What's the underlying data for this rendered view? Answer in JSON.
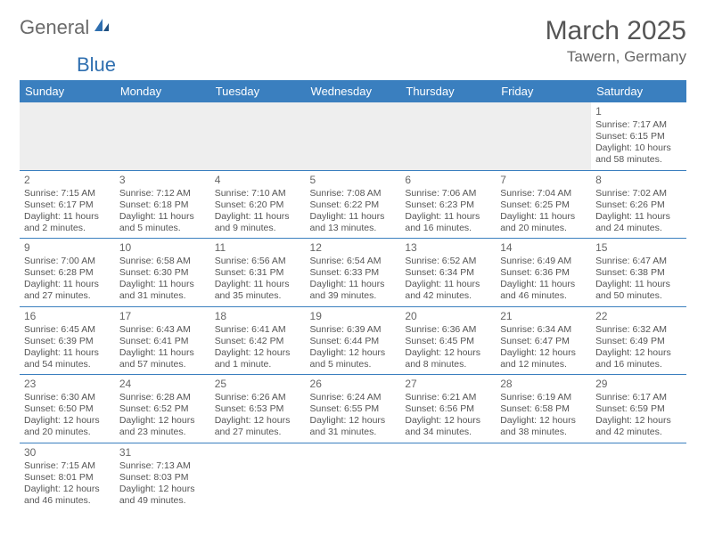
{
  "logo": {
    "part1": "General",
    "part2": "Blue"
  },
  "title": "March 2025",
  "location": "Tawern, Germany",
  "colors": {
    "headerBg": "#3a7fbf",
    "headerText": "#ffffff",
    "border": "#3a7fbf",
    "bodyText": "#555555",
    "logoGray": "#6a6a6a",
    "logoBlue": "#2f6fb0"
  },
  "dayHeaders": [
    "Sunday",
    "Monday",
    "Tuesday",
    "Wednesday",
    "Thursday",
    "Friday",
    "Saturday"
  ],
  "firstDayIndex": 6,
  "daysInMonth": 31,
  "days": {
    "1": {
      "sunrise": "7:17 AM",
      "sunset": "6:15 PM",
      "daylight": "10 hours and 58 minutes."
    },
    "2": {
      "sunrise": "7:15 AM",
      "sunset": "6:17 PM",
      "daylight": "11 hours and 2 minutes."
    },
    "3": {
      "sunrise": "7:12 AM",
      "sunset": "6:18 PM",
      "daylight": "11 hours and 5 minutes."
    },
    "4": {
      "sunrise": "7:10 AM",
      "sunset": "6:20 PM",
      "daylight": "11 hours and 9 minutes."
    },
    "5": {
      "sunrise": "7:08 AM",
      "sunset": "6:22 PM",
      "daylight": "11 hours and 13 minutes."
    },
    "6": {
      "sunrise": "7:06 AM",
      "sunset": "6:23 PM",
      "daylight": "11 hours and 16 minutes."
    },
    "7": {
      "sunrise": "7:04 AM",
      "sunset": "6:25 PM",
      "daylight": "11 hours and 20 minutes."
    },
    "8": {
      "sunrise": "7:02 AM",
      "sunset": "6:26 PM",
      "daylight": "11 hours and 24 minutes."
    },
    "9": {
      "sunrise": "7:00 AM",
      "sunset": "6:28 PM",
      "daylight": "11 hours and 27 minutes."
    },
    "10": {
      "sunrise": "6:58 AM",
      "sunset": "6:30 PM",
      "daylight": "11 hours and 31 minutes."
    },
    "11": {
      "sunrise": "6:56 AM",
      "sunset": "6:31 PM",
      "daylight": "11 hours and 35 minutes."
    },
    "12": {
      "sunrise": "6:54 AM",
      "sunset": "6:33 PM",
      "daylight": "11 hours and 39 minutes."
    },
    "13": {
      "sunrise": "6:52 AM",
      "sunset": "6:34 PM",
      "daylight": "11 hours and 42 minutes."
    },
    "14": {
      "sunrise": "6:49 AM",
      "sunset": "6:36 PM",
      "daylight": "11 hours and 46 minutes."
    },
    "15": {
      "sunrise": "6:47 AM",
      "sunset": "6:38 PM",
      "daylight": "11 hours and 50 minutes."
    },
    "16": {
      "sunrise": "6:45 AM",
      "sunset": "6:39 PM",
      "daylight": "11 hours and 54 minutes."
    },
    "17": {
      "sunrise": "6:43 AM",
      "sunset": "6:41 PM",
      "daylight": "11 hours and 57 minutes."
    },
    "18": {
      "sunrise": "6:41 AM",
      "sunset": "6:42 PM",
      "daylight": "12 hours and 1 minute."
    },
    "19": {
      "sunrise": "6:39 AM",
      "sunset": "6:44 PM",
      "daylight": "12 hours and 5 minutes."
    },
    "20": {
      "sunrise": "6:36 AM",
      "sunset": "6:45 PM",
      "daylight": "12 hours and 8 minutes."
    },
    "21": {
      "sunrise": "6:34 AM",
      "sunset": "6:47 PM",
      "daylight": "12 hours and 12 minutes."
    },
    "22": {
      "sunrise": "6:32 AM",
      "sunset": "6:49 PM",
      "daylight": "12 hours and 16 minutes."
    },
    "23": {
      "sunrise": "6:30 AM",
      "sunset": "6:50 PM",
      "daylight": "12 hours and 20 minutes."
    },
    "24": {
      "sunrise": "6:28 AM",
      "sunset": "6:52 PM",
      "daylight": "12 hours and 23 minutes."
    },
    "25": {
      "sunrise": "6:26 AM",
      "sunset": "6:53 PM",
      "daylight": "12 hours and 27 minutes."
    },
    "26": {
      "sunrise": "6:24 AM",
      "sunset": "6:55 PM",
      "daylight": "12 hours and 31 minutes."
    },
    "27": {
      "sunrise": "6:21 AM",
      "sunset": "6:56 PM",
      "daylight": "12 hours and 34 minutes."
    },
    "28": {
      "sunrise": "6:19 AM",
      "sunset": "6:58 PM",
      "daylight": "12 hours and 38 minutes."
    },
    "29": {
      "sunrise": "6:17 AM",
      "sunset": "6:59 PM",
      "daylight": "12 hours and 42 minutes."
    },
    "30": {
      "sunrise": "7:15 AM",
      "sunset": "8:01 PM",
      "daylight": "12 hours and 46 minutes."
    },
    "31": {
      "sunrise": "7:13 AM",
      "sunset": "8:03 PM",
      "daylight": "12 hours and 49 minutes."
    }
  },
  "labels": {
    "sunrise": "Sunrise:",
    "sunset": "Sunset:",
    "daylight": "Daylight:"
  }
}
